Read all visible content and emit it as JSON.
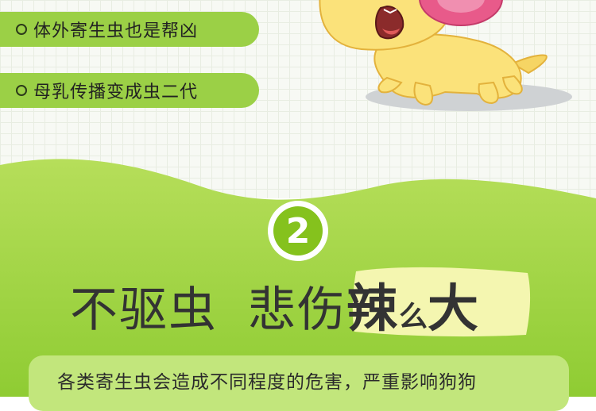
{
  "bullets": [
    "体外寄生虫也是帮凶",
    "母乳传播变成虫二代"
  ],
  "section": {
    "number": "2",
    "headline": {
      "part1": "不驱虫",
      "part2": "悲伤",
      "part3": "辣",
      "part4": "么",
      "part5": "大"
    },
    "description": "各类寄生虫会造成不同程度的危害，严重影响狗狗"
  },
  "colors": {
    "accent_green": "#9bd046",
    "light_green": "#c2e67c",
    "circle_green": "#85c21d",
    "highlight_yellow": "#f4f6b0"
  }
}
